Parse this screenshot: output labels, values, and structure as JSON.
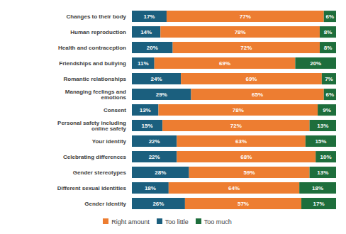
{
  "chart_data": {
    "type": "bar",
    "orientation": "horizontal",
    "stacked": true,
    "data_labels": true,
    "tick_labels": "y",
    "legend": "bottom",
    "xlim": [
      0,
      100
    ],
    "categories": [
      "Changes to their body",
      "Human reproduction",
      "Health and contraception",
      "Friendships and bullying",
      "Romantic relationships",
      "Managing feelings and emotions",
      "Consent",
      "Personal safety including online safety",
      "Your identity",
      "Celebrating differences",
      "Gender stereotypes",
      "Different sexual identities",
      "Gender identity"
    ],
    "series": [
      {
        "name": "Too little",
        "color": "#1b5f7e",
        "values": [
          17,
          14,
          20,
          11,
          24,
          29,
          13,
          15,
          22,
          22,
          28,
          18,
          26
        ],
        "value_labels": [
          "17%",
          "14%",
          "20%",
          "11%",
          "24%",
          "29%",
          "13%",
          "15%",
          "22%",
          "22%",
          "28%",
          "18%",
          "26%"
        ]
      },
      {
        "name": "Right amount",
        "color": "#ed7d31",
        "values": [
          77,
          78,
          72,
          69,
          69,
          65,
          78,
          72,
          63,
          68,
          59,
          64,
          57
        ],
        "value_labels": [
          "77%",
          "78%",
          "72%",
          "69%",
          "69%",
          "65%",
          "78%",
          "72%",
          "63%",
          "68%",
          "59%",
          "64%",
          "57%"
        ]
      },
      {
        "name": "Too much",
        "color": "#1e6e3c",
        "values": [
          6,
          8,
          8,
          20,
          7,
          6,
          9,
          13,
          15,
          10,
          13,
          18,
          17
        ],
        "value_labels": [
          "6%",
          "8%",
          "8%",
          "20%",
          "7%",
          "6%",
          "9%",
          "13%",
          "15%",
          "10%",
          "13%",
          "18%",
          "17%"
        ]
      }
    ]
  }
}
